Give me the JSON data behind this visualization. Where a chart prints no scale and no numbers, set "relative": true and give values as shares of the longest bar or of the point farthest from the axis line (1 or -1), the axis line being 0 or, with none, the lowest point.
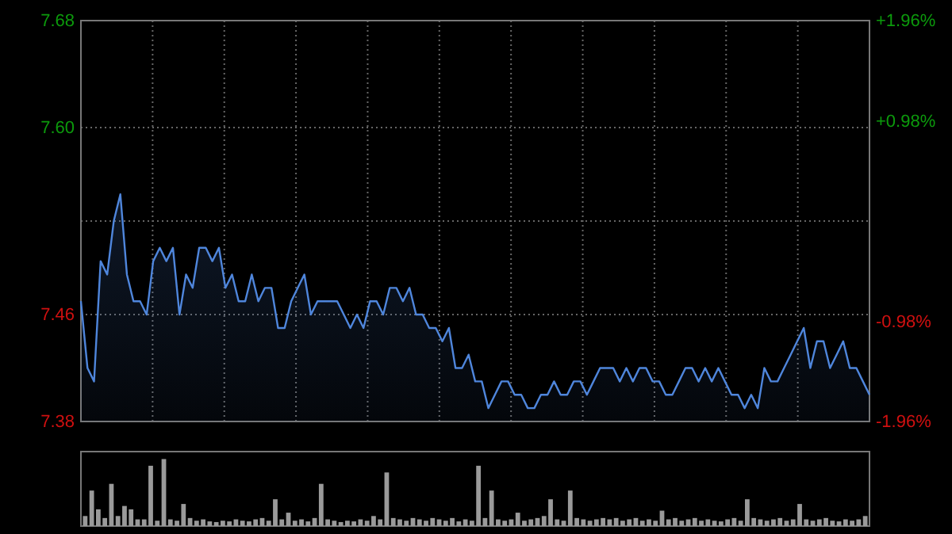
{
  "chart_data": [
    {
      "type": "area",
      "color": "#4f86dc",
      "categories": [
        null,
        null,
        null,
        null,
        null,
        null,
        null,
        null,
        null,
        null,
        null,
        null,
        null,
        null,
        null,
        null,
        null,
        null,
        null,
        null,
        null,
        null,
        null,
        null,
        null,
        null,
        null,
        null,
        null,
        null,
        null,
        null,
        null,
        null,
        null,
        null,
        null,
        null,
        null,
        null,
        null,
        null,
        null,
        null,
        null,
        null,
        null,
        null,
        null,
        null,
        null,
        null,
        null,
        null,
        null,
        null,
        null,
        null,
        null,
        null,
        null,
        null,
        null,
        null,
        null,
        null,
        null,
        null,
        null,
        null,
        null,
        null,
        null,
        null,
        null,
        null,
        null,
        null,
        null,
        null,
        null,
        null,
        null,
        null,
        null,
        null,
        null,
        null,
        null,
        null,
        null,
        null,
        null,
        null,
        null,
        null,
        null,
        null,
        null,
        null,
        null,
        null,
        null,
        null,
        null,
        null,
        null,
        null,
        null,
        null,
        null,
        null,
        null,
        null,
        null,
        null,
        null,
        null,
        null,
        null,
        null
      ],
      "ylim": [
        7.38,
        7.68
      ],
      "yticks": [
        7.38,
        7.46,
        {
          "value": 7.53,
          "label": null
        },
        {
          "value": 7.6,
          "label": "7.60"
        },
        7.68
      ],
      "y2lim": [
        -1.96,
        1.96
      ],
      "y2ticks": [
        {
          "value": -1.96,
          "label": "-1.96%"
        },
        {
          "value": -0.98,
          "label": "-0.98%"
        },
        {
          "value": 0,
          "label": null
        },
        {
          "value": 0.98,
          "label": "+0.98%"
        },
        {
          "value": 1.96,
          "label": "+1.96%"
        }
      ],
      "grid": true,
      "values": [
        7.47,
        7.42,
        7.41,
        7.5,
        7.49,
        7.53,
        7.55,
        7.49,
        7.47,
        7.47,
        7.46,
        7.5,
        7.51,
        7.5,
        7.51,
        7.46,
        7.49,
        7.48,
        7.51,
        7.51,
        7.5,
        7.51,
        7.48,
        7.49,
        7.47,
        7.47,
        7.49,
        7.47,
        7.48,
        7.48,
        7.45,
        7.45,
        7.47,
        7.48,
        7.49,
        7.46,
        7.47,
        7.47,
        7.47,
        7.47,
        7.46,
        7.45,
        7.46,
        7.45,
        7.47,
        7.47,
        7.46,
        7.48,
        7.48,
        7.47,
        7.48,
        7.46,
        7.46,
        7.45,
        7.45,
        7.44,
        7.45,
        7.42,
        7.42,
        7.43,
        7.41,
        7.41,
        7.39,
        7.4,
        7.41,
        7.41,
        7.4,
        7.4,
        7.39,
        7.39,
        7.4,
        7.4,
        7.41,
        7.4,
        7.4,
        7.41,
        7.41,
        7.4,
        7.41,
        7.42,
        7.42,
        7.42,
        7.41,
        7.42,
        7.41,
        7.42,
        7.42,
        7.41,
        7.41,
        7.4,
        7.4,
        7.41,
        7.42,
        7.42,
        7.41,
        7.42,
        7.41,
        7.42,
        7.41,
        7.4,
        7.4,
        7.39,
        7.4,
        7.39,
        7.42,
        7.41,
        7.41,
        7.42,
        7.43,
        7.44,
        7.45,
        7.42,
        7.44,
        7.44,
        7.42,
        7.43,
        7.44,
        7.42,
        7.42,
        7.41,
        7.4
      ]
    },
    {
      "type": "bar",
      "relative": true,
      "color": "#9a9a9a",
      "categories": [
        null,
        null,
        null,
        null,
        null,
        null,
        null,
        null,
        null,
        null,
        null,
        null,
        null,
        null,
        null,
        null,
        null,
        null,
        null,
        null,
        null,
        null,
        null,
        null,
        null,
        null,
        null,
        null,
        null,
        null,
        null,
        null,
        null,
        null,
        null,
        null,
        null,
        null,
        null,
        null,
        null,
        null,
        null,
        null,
        null,
        null,
        null,
        null,
        null,
        null,
        null,
        null,
        null,
        null,
        null,
        null,
        null,
        null,
        null,
        null,
        null,
        null,
        null,
        null,
        null,
        null,
        null,
        null,
        null,
        null,
        null,
        null,
        null,
        null,
        null,
        null,
        null,
        null,
        null,
        null,
        null,
        null,
        null,
        null,
        null,
        null,
        null,
        null,
        null,
        null,
        null,
        null,
        null,
        null,
        null,
        null,
        null,
        null,
        null,
        null,
        null,
        null,
        null,
        null,
        null,
        null,
        null,
        null,
        null,
        null,
        null,
        null,
        null,
        null,
        null,
        null,
        null,
        null,
        null,
        null
      ],
      "values": [
        0.15,
        0.53,
        0.25,
        0.12,
        0.63,
        0.15,
        0.3,
        0.25,
        0.1,
        0.1,
        0.9,
        0.08,
        1,
        0.1,
        0.08,
        0.33,
        0.12,
        0.08,
        0.1,
        0.07,
        0.06,
        0.08,
        0.07,
        0.1,
        0.08,
        0.07,
        0.1,
        0.12,
        0.08,
        0.4,
        0.1,
        0.2,
        0.08,
        0.1,
        0.07,
        0.12,
        0.63,
        0.1,
        0.08,
        0.06,
        0.08,
        0.07,
        0.1,
        0.08,
        0.15,
        0.1,
        0.8,
        0.12,
        0.1,
        0.08,
        0.12,
        0.1,
        0.08,
        0.12,
        0.1,
        0.08,
        0.12,
        0.07,
        0.1,
        0.08,
        0.9,
        0.12,
        0.53,
        0.1,
        0.08,
        0.1,
        0.2,
        0.08,
        0.1,
        0.12,
        0.15,
        0.4,
        0.1,
        0.08,
        0.53,
        0.12,
        0.1,
        0.08,
        0.1,
        0.12,
        0.1,
        0.12,
        0.08,
        0.1,
        0.12,
        0.08,
        0.1,
        0.08,
        0.23,
        0.1,
        0.12,
        0.08,
        0.1,
        0.12,
        0.08,
        0.1,
        0.08,
        0.07,
        0.1,
        0.12,
        0.08,
        0.4,
        0.12,
        0.1,
        0.08,
        0.1,
        0.12,
        0.08,
        0.1,
        0.33,
        0.1,
        0.08,
        0.1,
        0.12,
        0.08,
        0.07,
        0.1,
        0.08,
        0.1,
        0.15
      ]
    }
  ]
}
